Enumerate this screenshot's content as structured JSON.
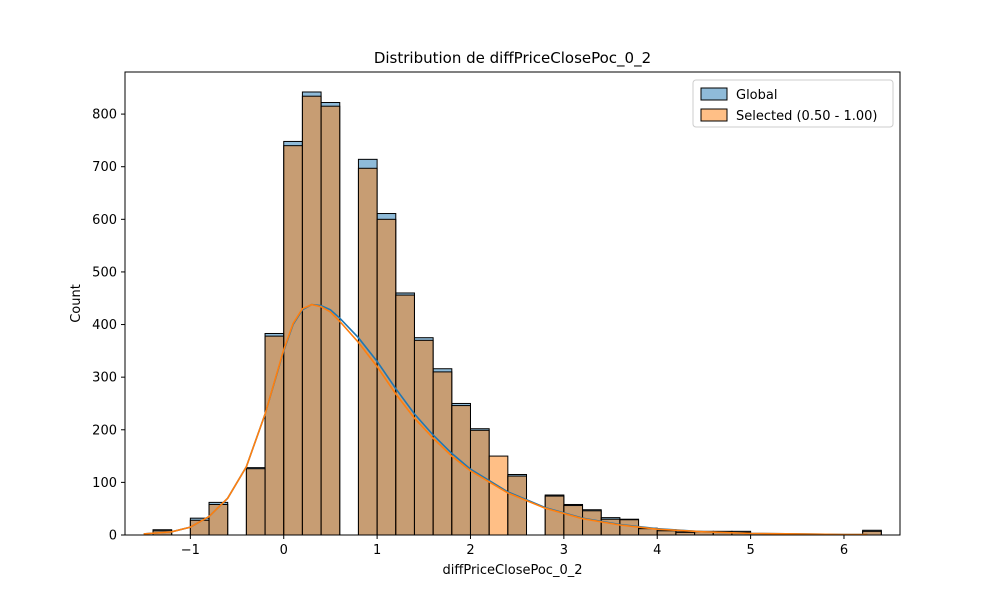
{
  "chart_data": {
    "type": "bar",
    "title": "Distribution de diffPriceClosePoc_0_2",
    "xlabel": "diffPriceClosePoc_0_2",
    "ylabel": "Count",
    "xlim": [
      -1.7,
      6.6
    ],
    "ylim": [
      0,
      880
    ],
    "xticks": [
      -1,
      0,
      1,
      2,
      3,
      4,
      5,
      6
    ],
    "yticks": [
      0,
      100,
      200,
      300,
      400,
      500,
      600,
      700,
      800
    ],
    "legend_position": "upper-right",
    "bin_width": 0.2,
    "bin_edges_start": [
      -1.4,
      -1.0,
      -0.8,
      -0.6,
      -0.4,
      -0.2,
      0.0,
      0.2,
      0.4,
      0.6,
      0.8,
      1.0,
      1.2,
      1.4,
      1.6,
      1.8,
      2.0,
      2.2,
      2.4,
      2.6,
      2.8,
      3.0,
      3.2,
      3.4,
      3.6,
      3.8,
      4.0,
      4.2,
      4.4,
      4.6,
      4.8,
      5.0,
      5.2,
      5.4,
      6.2
    ],
    "series": [
      {
        "name": "Global",
        "color": "#1f77b4",
        "values": [
          10,
          32,
          62,
          0,
          128,
          383,
          748,
          842,
          822,
          0,
          714,
          611,
          460,
          375,
          316,
          250,
          202,
          0,
          115,
          0,
          76,
          58,
          48,
          33,
          30,
          13,
          10,
          6,
          7,
          7,
          7,
          0,
          0,
          0,
          9
        ]
      },
      {
        "name": "Selected (0.50 - 1.00)",
        "color": "#ff7f0e",
        "values": [
          8,
          28,
          58,
          0,
          126,
          378,
          740,
          834,
          815,
          0,
          697,
          600,
          456,
          370,
          310,
          246,
          199,
          150,
          112,
          0,
          74,
          56,
          46,
          30,
          29,
          12,
          8,
          5,
          6,
          6,
          5,
          0,
          0,
          0,
          7
        ]
      }
    ],
    "kde": {
      "x": [
        -1.5,
        -1.2,
        -1.0,
        -0.8,
        -0.6,
        -0.4,
        -0.2,
        0.0,
        0.1,
        0.2,
        0.3,
        0.4,
        0.5,
        0.6,
        0.8,
        1.0,
        1.2,
        1.4,
        1.6,
        1.8,
        2.0,
        2.4,
        2.8,
        3.2,
        3.6,
        4.0,
        4.5,
        5.0,
        5.5,
        6.0,
        6.25
      ],
      "global": [
        2,
        6,
        15,
        35,
        70,
        130,
        230,
        350,
        400,
        428,
        438,
        436,
        428,
        412,
        375,
        330,
        278,
        230,
        190,
        155,
        125,
        82,
        52,
        32,
        20,
        12,
        6,
        3,
        2,
        1,
        1
      ],
      "selected": [
        2,
        6,
        15,
        35,
        70,
        130,
        230,
        352,
        402,
        430,
        438,
        434,
        424,
        406,
        366,
        320,
        268,
        222,
        184,
        150,
        122,
        80,
        51,
        31,
        19,
        11,
        6,
        3,
        2,
        1,
        1
      ]
    }
  }
}
